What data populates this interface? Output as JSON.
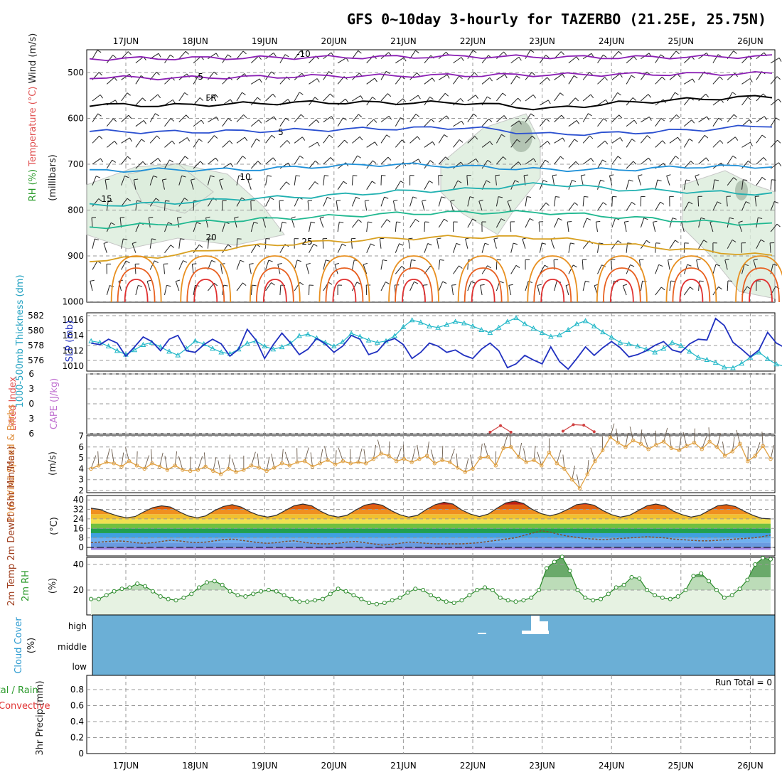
{
  "chart_data": {
    "title": "GFS 0~10day 3-hourly for TAZERBO (21.25E, 25.75N)",
    "dates": [
      "17JUN",
      "18JUN",
      "19JUN",
      "20JUN",
      "21JUN",
      "22JUN",
      "23JUN",
      "24JUN",
      "25JUN",
      "26JUN"
    ],
    "panels": [
      {
        "id": "upper_air",
        "type": "contour",
        "ylabel_parts": [
          "RH (%)",
          "Temperature (°C)",
          "Wind (m/s)"
        ],
        "ylabel_units": "(millibars)",
        "y_ticks": [
          500,
          600,
          700,
          800,
          900,
          1000
        ],
        "ylim": [
          450,
          1000
        ],
        "isotherm_labels": [
          {
            "label": "-10",
            "color": "#8b1fb4"
          },
          {
            "label": "-5",
            "color": "#8b1fb4"
          },
          {
            "label": "FR",
            "color": "#000000"
          },
          {
            "label": "5",
            "color": "#2a4fd0"
          },
          {
            "label": "10",
            "color": "#1e90d8"
          },
          {
            "label": "15",
            "color": "#20b0b0"
          },
          {
            "label": "20",
            "color": "#20b890"
          },
          {
            "label": "25",
            "color": "#d8a020"
          }
        ],
        "isotherm_levels_mb": [
          {
            "name": "-10",
            "p": [
              470,
              469,
              468,
              467,
              466,
              465,
              466,
              467,
              466,
              465
            ]
          },
          {
            "name": "-5",
            "p": [
              510,
              512,
              510,
              508,
              507,
              506,
              505,
              504,
              503,
              502
            ]
          },
          {
            "name": "FR",
            "p": [
              570,
              572,
              568,
              565,
              566,
              566,
              580,
              566,
              558,
              552
            ]
          },
          {
            "name": "5",
            "p": [
              628,
              630,
              628,
              625,
              622,
              620,
              635,
              632,
              625,
              615
            ]
          },
          {
            "name": "10",
            "p": [
              715,
              712,
              712,
              705,
              700,
              705,
              712,
              712,
              705,
              705
            ]
          },
          {
            "name": "15",
            "p": [
              790,
              785,
              775,
              770,
              760,
              755,
              742,
              755,
              760,
              765
            ]
          },
          {
            "name": "20",
            "p": [
              838,
              830,
              822,
              815,
              808,
              805,
              805,
              815,
              825,
              832
            ]
          },
          {
            "name": "25",
            "p": [
              910,
              900,
              880,
              870,
              862,
              858,
              860,
              875,
              888,
              900
            ]
          }
        ]
      },
      {
        "id": "thickness_slp",
        "type": "line",
        "ylabel_left": "1000-500mb Thickness (dm)",
        "ylabel_right": "SLP (mb)",
        "left_ticks": [
          576,
          578,
          580,
          582
        ],
        "right_ticks": [
          1010,
          1012,
          1014,
          1016
        ],
        "series": [
          {
            "name": "1000-500mb Thickness (dm)",
            "color": "#22b8c8",
            "values": [
              578.6,
              578.4,
              577.9,
              577.3,
              576.8,
              577.4,
              578.1,
              578.4,
              577.8,
              577.2,
              576.7,
              577.6,
              578.6,
              578.2,
              577.6,
              577.1,
              576.9,
              577.5,
              578.3,
              578.6,
              577.9,
              577.5,
              577.8,
              578.3,
              579.3,
              579.5,
              579.0,
              578.4,
              577.9,
              578.5,
              579.6,
              579.2,
              578.7,
              578.4,
              578.6,
              579.3,
              580.5,
              581.4,
              581.1,
              580.6,
              580.4,
              580.8,
              581.2,
              581.0,
              580.6,
              580.1,
              579.7,
              580.4,
              581.2,
              581.7,
              580.9,
              580.3,
              579.7,
              579.2,
              579.4,
              580.1,
              580.9,
              581.3,
              580.6,
              579.8,
              579.1,
              578.4,
              578.2,
              577.9,
              577.5,
              577.1,
              577.6,
              578.4,
              578.0,
              577.2,
              576.4,
              576.1,
              575.7,
              575.1,
              575.0,
              575.6,
              576.4,
              577.1,
              576.2,
              575.5,
              575.2,
              575.0
            ]
          },
          {
            "name": "SLP (mb)",
            "color": "#2030c0",
            "values": [
              1013.0,
              1012.8,
              1013.5,
              1013.0,
              1011.3,
              1012.5,
              1013.8,
              1013.2,
              1012.0,
              1013.5,
              1014.0,
              1012.0,
              1011.8,
              1012.8,
              1013.5,
              1012.9,
              1011.3,
              1012.2,
              1014.8,
              1013.4,
              1011.0,
              1012.8,
              1014.3,
              1013.0,
              1011.5,
              1012.2,
              1013.6,
              1012.9,
              1011.8,
              1012.6,
              1014.0,
              1013.5,
              1011.5,
              1011.9,
              1013.2,
              1013.6,
              1012.8,
              1011.0,
              1011.8,
              1013.0,
              1012.6,
              1011.8,
              1012.1,
              1011.4,
              1011.0,
              1012.2,
              1013.0,
              1012.0,
              1009.8,
              1010.3,
              1011.4,
              1010.8,
              1010.3,
              1012.5,
              1010.6,
              1009.6,
              1011.0,
              1012.5,
              1011.4,
              1012.4,
              1013.2,
              1012.4,
              1011.2,
              1011.5,
              1012.0,
              1012.7,
              1013.2,
              1012.1,
              1011.8,
              1012.9,
              1013.5,
              1013.4,
              1016.2,
              1015.3,
              1013.1,
              1012.2,
              1011.2,
              1012.1,
              1014.4,
              1013.0,
              1012.4,
              1014.2
            ]
          }
        ]
      },
      {
        "id": "li_cape",
        "type": "line",
        "ylabel_left": "Lifted Index",
        "ylabel_right": "CAPE (J/kg)",
        "y_ticks": [
          -6,
          -3,
          0,
          3,
          6
        ],
        "ylim": [
          -6,
          6
        ],
        "series": [
          {
            "name": "CAPE (J/kg)",
            "color": "#d04040",
            "points": [
              [
                5.25,
                5.7
              ],
              [
                5.4,
                4.4
              ],
              [
                5.55,
                5.7
              ],
              [
                6.3,
                5.5
              ],
              [
                6.45,
                4.2
              ],
              [
                6.6,
                4.3
              ],
              [
                6.75,
                5.6
              ]
            ]
          }
        ]
      },
      {
        "id": "wind10m",
        "type": "line",
        "ylabel": "10m Wind Speed & Barbs",
        "ylabel_units": "(m/s)",
        "y_ticks": [
          2,
          3,
          4,
          5,
          6,
          7
        ],
        "ylim": [
          2,
          7
        ],
        "series": [
          {
            "name": "10m Wind Speed",
            "color": "#e0a040",
            "values": [
              4.0,
              4.3,
              4.6,
              4.5,
              4.2,
              4.7,
              4.3,
              4.0,
              4.5,
              4.2,
              3.9,
              4.3,
              3.9,
              3.8,
              3.9,
              4.2,
              3.8,
              3.5,
              4.0,
              3.7,
              3.9,
              4.3,
              4.1,
              3.8,
              4.1,
              4.5,
              4.3,
              4.6,
              4.7,
              4.2,
              4.5,
              4.8,
              4.4,
              4.7,
              4.5,
              4.6,
              4.5,
              4.9,
              5.4,
              5.2,
              4.7,
              4.9,
              4.6,
              4.9,
              5.2,
              4.5,
              4.8,
              4.6,
              4.1,
              3.7,
              4.0,
              5.0,
              5.1,
              4.3,
              5.9,
              6.0,
              5.1,
              4.6,
              4.8,
              4.3,
              5.5,
              4.5,
              4.0,
              3.0,
              2.2,
              3.5,
              4.7,
              5.7,
              6.9,
              6.4,
              6.0,
              6.6,
              6.3,
              5.8,
              6.2,
              6.5,
              5.9,
              5.7,
              6.1,
              6.4,
              5.8,
              6.5,
              6.0,
              5.2,
              5.6,
              6.3,
              4.7,
              5.2,
              6.1,
              4.9
            ]
          }
        ]
      },
      {
        "id": "temp2m",
        "type": "area",
        "ylabel": "2m Temp 2m DewPt (6hr Min/Max)",
        "ylabel_units": "(°C)",
        "y_ticks": [
          0,
          8,
          16,
          24,
          32,
          40
        ],
        "ylim": [
          -2,
          41
        ],
        "series": [
          {
            "name": "2m Temp",
            "color": "#c02010",
            "values": [
              33.0,
              32.0,
              29.0,
              26.5,
              25.0,
              26.0,
              30.0,
              33.5,
              35.0,
              34.0,
              30.0,
              26.5,
              25.0,
              26.5,
              31.0,
              34.5,
              36.0,
              34.0,
              30.0,
              27.0,
              25.5,
              27.0,
              31.0,
              35.0,
              36.5,
              35.0,
              30.5,
              27.0,
              25.5,
              27.0,
              31.5,
              35.5,
              37.0,
              35.5,
              31.0,
              27.5,
              25.5,
              27.0,
              32.0,
              36.0,
              38.0,
              36.5,
              31.5,
              28.0,
              26.0,
              28.0,
              33.0,
              37.5,
              39.0,
              37.0,
              32.0,
              28.5,
              26.5,
              28.5,
              32.0,
              36.0,
              37.0,
              35.5,
              31.0,
              27.5,
              25.5,
              27.0,
              31.0,
              35.0,
              36.5,
              35.0,
              30.5,
              27.5,
              25.5,
              27.0,
              31.0,
              35.0,
              36.0,
              34.5,
              30.5,
              27.0,
              24.5,
              24.0
            ]
          },
          {
            "name": "2m DewPt",
            "color": "#805030",
            "values": [
              4.0,
              4.5,
              5.0,
              5.5,
              5.0,
              4.0,
              3.5,
              4.0,
              5.0,
              6.0,
              5.5,
              4.5,
              4.0,
              4.5,
              5.5,
              6.5,
              7.0,
              6.0,
              5.0,
              4.0,
              3.5,
              4.0,
              5.0,
              5.5,
              4.5,
              3.5,
              3.0,
              3.0,
              3.5,
              4.5,
              5.0,
              4.0,
              3.0,
              2.0,
              2.5,
              3.5,
              4.5,
              4.0,
              3.5,
              3.0,
              3.0,
              3.0,
              3.0,
              3.5,
              4.0,
              5.0,
              6.0,
              7.0,
              8.0,
              10.0,
              12.0,
              14.0,
              13.0,
              11.0,
              9.5,
              8.5,
              7.5,
              7.0,
              6.5,
              7.0,
              7.5,
              8.0,
              8.5,
              9.0,
              8.5,
              8.0,
              7.0,
              6.5,
              6.0,
              5.5,
              5.5,
              6.0,
              6.5,
              7.0,
              7.5,
              8.0,
              9.0,
              10.5
            ]
          }
        ]
      },
      {
        "id": "rh2m",
        "type": "area",
        "ylabel": "2m RH",
        "ylabel_units": "(%)",
        "y_ticks": [
          20,
          40
        ],
        "ylim": [
          0,
          48
        ],
        "series": [
          {
            "name": "2m RH",
            "color": "#2a8a2a",
            "values": [
              13,
              13,
              16,
              19,
              21,
              22,
              25,
              23,
              19,
              15,
              13,
              12,
              14,
              17,
              22,
              26,
              27,
              24,
              19,
              16,
              15,
              17,
              19,
              20,
              19,
              16,
              13,
              11,
              11,
              12,
              13,
              17,
              21,
              19,
              16,
              13,
              10,
              9,
              10,
              12,
              14,
              18,
              21,
              20,
              16,
              13,
              11,
              10,
              12,
              16,
              20,
              22,
              20,
              14,
              12,
              11,
              12,
              14,
              20,
              37,
              42,
              46,
              35,
              20,
              14,
              12,
              13,
              17,
              22,
              24,
              30,
              29,
              20,
              16,
              14,
              13,
              15,
              20,
              31,
              33,
              27,
              20,
              14,
              16,
              21,
              28,
              40,
              45,
              44
            ]
          }
        ]
      },
      {
        "id": "cloud",
        "type": "heatmap",
        "ylabel": "Cloud Cover",
        "ylabel_units": "(%)",
        "levels": [
          "high",
          "middle",
          "low"
        ],
        "color": "#6bafd6"
      },
      {
        "id": "precip",
        "type": "bar",
        "ylabel_parts": [
          "Total / Rain",
          "Convective"
        ],
        "ylabel": "3hr Precip",
        "ylabel_units": "(mm)",
        "y_ticks": [
          0,
          0.2,
          0.4,
          0.6,
          0.8
        ],
        "ylim": [
          0,
          1.0
        ],
        "annotation": "Run Total = 0",
        "values": []
      }
    ]
  }
}
